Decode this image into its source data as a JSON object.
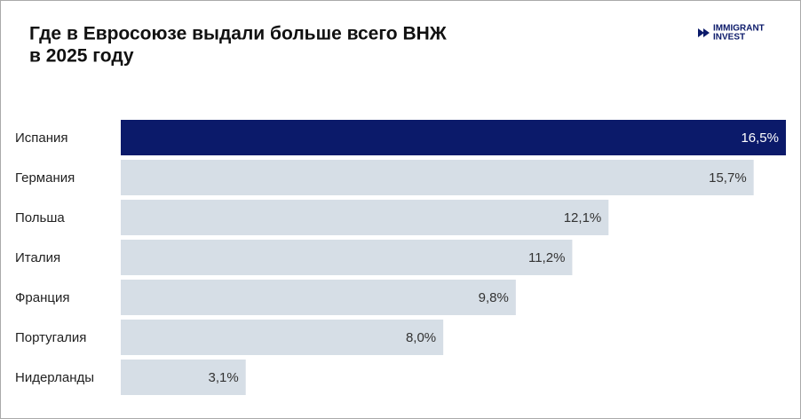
{
  "chart_data": {
    "type": "bar",
    "orientation": "horizontal",
    "title_lines": [
      "Где в Евросоюзе выдали больше всего ВНЖ",
      "в 2025 году"
    ],
    "brand": [
      "IMMIGRANT",
      "INVEST"
    ],
    "categories": [
      "Испания",
      "Германия",
      "Польша",
      "Италия",
      "Франция",
      "Португалия",
      "Нидерланды"
    ],
    "values": [
      16.5,
      15.7,
      12.1,
      11.2,
      9.8,
      8.0,
      3.1
    ],
    "value_labels": [
      "16,5%",
      "15,7%",
      "12,1%",
      "11,2%",
      "9,8%",
      "8,0%",
      "3,1%"
    ],
    "colors": [
      "#0b1a6a",
      "#d6dee6",
      "#d6dee6",
      "#d6dee6",
      "#d6dee6",
      "#d6dee6",
      "#d6dee6"
    ],
    "value_label_colors": [
      "#ffffff",
      "#333333",
      "#333333",
      "#333333",
      "#333333",
      "#333333",
      "#333333"
    ],
    "xlim": [
      0,
      16.5
    ]
  }
}
